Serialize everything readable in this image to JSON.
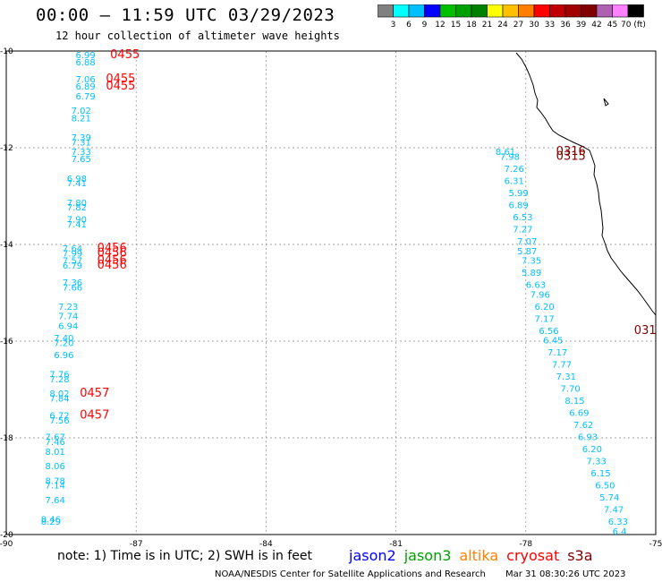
{
  "header": {
    "title": "00:00 — 11:59 UTC 03/29/2023",
    "subtitle": "12 hour collection of altimeter wave heights"
  },
  "colorbar": {
    "colors": [
      "#808080",
      "#00ffff",
      "#00bfff",
      "#0000ff",
      "#00c000",
      "#00a000",
      "#008000",
      "#ffff00",
      "#ffc000",
      "#ff8000",
      "#ff0000",
      "#c00000",
      "#a00000",
      "#800000",
      "#b060b0",
      "#ff80ff",
      "#000000"
    ],
    "labels": [
      "3",
      "6",
      "9",
      "12",
      "15",
      "18",
      "21",
      "24",
      "27",
      "30",
      "33",
      "36",
      "39",
      "42",
      "45",
      "70 (ft)"
    ]
  },
  "axes": {
    "x_ticks": [
      "-90",
      "-87",
      "-84",
      "-81",
      "-78",
      "-75"
    ],
    "y_ticks": [
      "-10",
      "-12",
      "-14",
      "-16",
      "-18",
      "-20"
    ]
  },
  "legend": {
    "note": "note: 1) Time is in UTC; 2) SWH is in feet",
    "satellites": [
      {
        "name": "jason2",
        "color": "#0000ff"
      },
      {
        "name": "jason3",
        "color": "#00a000"
      },
      {
        "name": "altika",
        "color": "#ff8000"
      },
      {
        "name": "cryosat",
        "color": "#ff0000"
      },
      {
        "name": "s3a",
        "color": "#800000"
      }
    ]
  },
  "footer": {
    "credit": "NOAA/NESDIS Center for Satellite Applications and Research",
    "generated": "Mar 31 08:30:26 UTC 2023"
  },
  "chart_data": {
    "type": "scatter",
    "x_label": "",
    "y_label": "",
    "xlim": [
      -90,
      -75
    ],
    "ylim": [
      -20,
      -10
    ],
    "grid": true,
    "wave_color": "#00bfff",
    "time_colors": {
      "cryosat": "#ff0000",
      "s3a": "#800000"
    },
    "west_track_swh": [
      {
        "lon": -88.4,
        "lat": -10.15,
        "swh": "6.99"
      },
      {
        "lon": -88.4,
        "lat": -10.3,
        "swh": "6.88"
      },
      {
        "lon": -88.4,
        "lat": -10.65,
        "swh": "7.06"
      },
      {
        "lon": -88.4,
        "lat": -10.8,
        "swh": "6.89"
      },
      {
        "lon": -88.4,
        "lat": -11.0,
        "swh": "6.79"
      },
      {
        "lon": -88.5,
        "lat": -11.3,
        "swh": "7.02"
      },
      {
        "lon": -88.5,
        "lat": -11.45,
        "swh": "8.21"
      },
      {
        "lon": -88.5,
        "lat": -11.85,
        "swh": "7.39"
      },
      {
        "lon": -88.5,
        "lat": -11.95,
        "swh": "7.31"
      },
      {
        "lon": -88.5,
        "lat": -12.15,
        "swh": "7.33"
      },
      {
        "lon": -88.5,
        "lat": -12.3,
        "swh": "7.65"
      },
      {
        "lon": -88.6,
        "lat": -12.7,
        "swh": "6.98"
      },
      {
        "lon": -88.6,
        "lat": -12.8,
        "swh": "7.41"
      },
      {
        "lon": -88.6,
        "lat": -13.2,
        "swh": "7.80"
      },
      {
        "lon": -88.6,
        "lat": -13.3,
        "swh": "7.82"
      },
      {
        "lon": -88.6,
        "lat": -13.55,
        "swh": "7.90"
      },
      {
        "lon": -88.6,
        "lat": -13.65,
        "swh": "7.41"
      },
      {
        "lon": -88.7,
        "lat": -14.15,
        "swh": "7.64"
      },
      {
        "lon": -88.7,
        "lat": -14.25,
        "swh": "7.99"
      },
      {
        "lon": -88.7,
        "lat": -14.4,
        "swh": "7.57"
      },
      {
        "lon": -88.7,
        "lat": -14.5,
        "swh": "6.79"
      },
      {
        "lon": -88.7,
        "lat": -14.85,
        "swh": "7.36"
      },
      {
        "lon": -88.7,
        "lat": -14.95,
        "swh": "7.66"
      },
      {
        "lon": -88.8,
        "lat": -15.35,
        "swh": "7.23"
      },
      {
        "lon": -88.8,
        "lat": -15.55,
        "swh": "7.74"
      },
      {
        "lon": -88.8,
        "lat": -15.75,
        "swh": "6.94"
      },
      {
        "lon": -88.9,
        "lat": -16.0,
        "swh": "7.40"
      },
      {
        "lon": -88.9,
        "lat": -16.1,
        "swh": "7.20"
      },
      {
        "lon": -88.9,
        "lat": -16.35,
        "swh": "6.96"
      },
      {
        "lon": -89.0,
        "lat": -16.75,
        "swh": "7.76"
      },
      {
        "lon": -89.0,
        "lat": -16.85,
        "swh": "7.28"
      },
      {
        "lon": -89.0,
        "lat": -17.15,
        "swh": "8.02"
      },
      {
        "lon": -89.0,
        "lat": -17.25,
        "swh": "7.84"
      },
      {
        "lon": -89.0,
        "lat": -17.6,
        "swh": "6.72"
      },
      {
        "lon": -89.0,
        "lat": -17.7,
        "swh": "7.56"
      },
      {
        "lon": -89.1,
        "lat": -18.05,
        "swh": "7.67"
      },
      {
        "lon": -89.1,
        "lat": -18.15,
        "swh": "7.46"
      },
      {
        "lon": -89.1,
        "lat": -18.35,
        "swh": "8.01"
      },
      {
        "lon": -89.1,
        "lat": -18.65,
        "swh": "8.06"
      },
      {
        "lon": -89.1,
        "lat": -18.95,
        "swh": "8.78"
      },
      {
        "lon": -89.1,
        "lat": -19.05,
        "swh": "7.14"
      },
      {
        "lon": -89.1,
        "lat": -19.35,
        "swh": "7.64"
      },
      {
        "lon": -89.2,
        "lat": -19.75,
        "swh": "8.46"
      },
      {
        "lon": -89.2,
        "lat": -19.8,
        "swh": "8.29"
      }
    ],
    "east_track_swh": [
      {
        "lon": -78.7,
        "lat": -12.15,
        "swh": "8.61"
      },
      {
        "lon": -78.6,
        "lat": -12.25,
        "swh": "7.98"
      },
      {
        "lon": -78.5,
        "lat": -12.5,
        "swh": "7.26"
      },
      {
        "lon": -78.5,
        "lat": -12.75,
        "swh": "6.31"
      },
      {
        "lon": -78.4,
        "lat": -13.0,
        "swh": "5.99"
      },
      {
        "lon": -78.4,
        "lat": -13.25,
        "swh": "6.89"
      },
      {
        "lon": -78.3,
        "lat": -13.5,
        "swh": "6.53"
      },
      {
        "lon": -78.3,
        "lat": -13.75,
        "swh": "7.27"
      },
      {
        "lon": -78.2,
        "lat": -14.0,
        "swh": "7.07"
      },
      {
        "lon": -78.2,
        "lat": -14.2,
        "swh": "5.87"
      },
      {
        "lon": -78.1,
        "lat": -14.4,
        "swh": "7.35"
      },
      {
        "lon": -78.1,
        "lat": -14.65,
        "swh": "5.89"
      },
      {
        "lon": -78.0,
        "lat": -14.9,
        "swh": "6.63"
      },
      {
        "lon": -77.9,
        "lat": -15.1,
        "swh": "7.96"
      },
      {
        "lon": -77.8,
        "lat": -15.35,
        "swh": "6.20"
      },
      {
        "lon": -77.8,
        "lat": -15.6,
        "swh": "7.17"
      },
      {
        "lon": -77.7,
        "lat": -15.85,
        "swh": "6.56"
      },
      {
        "lon": -77.6,
        "lat": -16.05,
        "swh": "6.45"
      },
      {
        "lon": -77.5,
        "lat": -16.3,
        "swh": "7.17"
      },
      {
        "lon": -77.4,
        "lat": -16.55,
        "swh": "7.77"
      },
      {
        "lon": -77.3,
        "lat": -16.8,
        "swh": "7.31"
      },
      {
        "lon": -77.2,
        "lat": -17.05,
        "swh": "7.70"
      },
      {
        "lon": -77.1,
        "lat": -17.3,
        "swh": "8.15"
      },
      {
        "lon": -77.0,
        "lat": -17.55,
        "swh": "6.69"
      },
      {
        "lon": -76.9,
        "lat": -17.8,
        "swh": "7.62"
      },
      {
        "lon": -76.8,
        "lat": -18.05,
        "swh": "6.93"
      },
      {
        "lon": -76.7,
        "lat": -18.3,
        "swh": "6.20"
      },
      {
        "lon": -76.6,
        "lat": -18.55,
        "swh": "7.33"
      },
      {
        "lon": -76.5,
        "lat": -18.8,
        "swh": "6.15"
      },
      {
        "lon": -76.4,
        "lat": -19.05,
        "swh": "6.50"
      },
      {
        "lon": -76.3,
        "lat": -19.3,
        "swh": "5.74"
      },
      {
        "lon": -76.2,
        "lat": -19.55,
        "swh": "7.47"
      },
      {
        "lon": -76.1,
        "lat": -19.8,
        "swh": "6.33"
      },
      {
        "lon": -76.0,
        "lat": -20.0,
        "swh": "6.4"
      }
    ],
    "time_labels": [
      {
        "lon": -87.6,
        "lat": -10.15,
        "text": "0455",
        "sat": "cryosat"
      },
      {
        "lon": -87.7,
        "lat": -10.65,
        "text": "0455",
        "sat": "cryosat"
      },
      {
        "lon": -87.7,
        "lat": -10.8,
        "text": "0455",
        "sat": "cryosat"
      },
      {
        "lon": -87.9,
        "lat": -14.15,
        "text": "0456",
        "sat": "cryosat"
      },
      {
        "lon": -87.9,
        "lat": -14.25,
        "text": "0456",
        "sat": "cryosat"
      },
      {
        "lon": -87.9,
        "lat": -14.4,
        "text": "0456",
        "sat": "cryosat"
      },
      {
        "lon": -87.9,
        "lat": -14.5,
        "text": "0456",
        "sat": "cryosat"
      },
      {
        "lon": -88.3,
        "lat": -17.15,
        "text": "0457",
        "sat": "cryosat"
      },
      {
        "lon": -88.3,
        "lat": -17.6,
        "text": "0457",
        "sat": "cryosat"
      },
      {
        "lon": -77.3,
        "lat": -12.15,
        "text": "0316",
        "sat": "s3a"
      },
      {
        "lon": -77.3,
        "lat": -12.25,
        "text": "0315",
        "sat": "s3a"
      },
      {
        "lon": -75.5,
        "lat": -15.85,
        "text": "031",
        "sat": "s3a"
      }
    ]
  }
}
